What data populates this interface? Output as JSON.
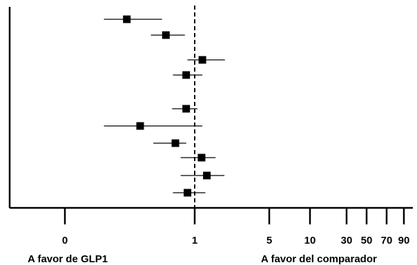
{
  "chart_data": {
    "type": "scatter",
    "subtype": "forest-plot",
    "title": "",
    "xlabel": "",
    "ylabel": "",
    "x_scale": "log",
    "x_ticks": [
      {
        "label": "0",
        "value": 0.1
      },
      {
        "label": "1",
        "value": 1
      },
      {
        "label": "5",
        "value": 5
      },
      {
        "label": "10",
        "value": 10
      },
      {
        "label": "30",
        "value": 30
      },
      {
        "label": "50",
        "value": 50
      },
      {
        "label": "70",
        "value": 70
      },
      {
        "label": "90",
        "value": 90
      }
    ],
    "reference_line": {
      "value": 1,
      "style": "dashed"
    },
    "rows": [
      {
        "estimate": 0.3,
        "lower": 0.2,
        "upper": 0.56
      },
      {
        "estimate": 0.6,
        "lower": 0.46,
        "upper": 0.84
      },
      {
        "estimate": 1.18,
        "lower": 0.88,
        "upper": 1.92
      },
      {
        "estimate": 0.86,
        "lower": 0.68,
        "upper": 1.18
      },
      {
        "estimate": 0.86,
        "lower": 0.67,
        "upper": 1.06
      },
      {
        "estimate": 0.38,
        "lower": 0.2,
        "upper": 1.18
      },
      {
        "estimate": 0.71,
        "lower": 0.48,
        "upper": 0.86
      },
      {
        "estimate": 1.16,
        "lower": 0.78,
        "upper": 1.57
      },
      {
        "estimate": 1.3,
        "lower": 0.78,
        "upper": 1.9
      },
      {
        "estimate": 0.88,
        "lower": 0.68,
        "upper": 1.26
      }
    ],
    "annotations": {
      "left": "A favor de GLP1",
      "right": "A favor del comparador"
    },
    "grid": false
  }
}
